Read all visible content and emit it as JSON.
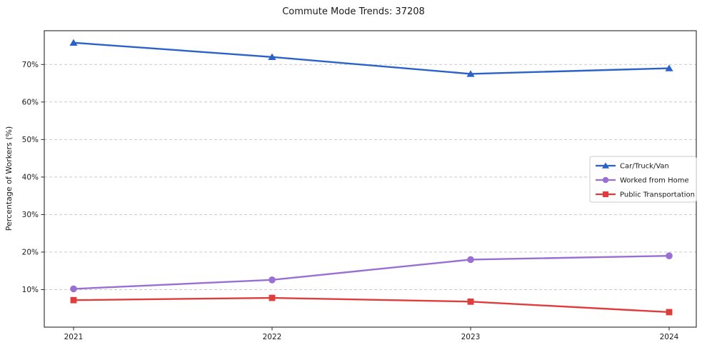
{
  "chart_data": {
    "type": "line",
    "title": "Commute Mode Trends: 37208",
    "xlabel": "",
    "ylabel": "Percentage of Workers (%)",
    "categories": [
      "2021",
      "2022",
      "2023",
      "2024"
    ],
    "series": [
      {
        "name": "Car/Truck/Van",
        "values": [
          75.8,
          72.0,
          67.5,
          69.0
        ],
        "color": "#2b62c9",
        "marker": "triangle"
      },
      {
        "name": "Worked from Home",
        "values": [
          10.2,
          12.6,
          18.0,
          19.0
        ],
        "color": "#9a6fd4",
        "marker": "circle"
      },
      {
        "name": "Public Transportation",
        "values": [
          7.2,
          7.8,
          6.8,
          4.0
        ],
        "color": "#e03c3c",
        "marker": "square"
      }
    ],
    "ylim": [
      0,
      79
    ],
    "yticks": [
      10,
      20,
      30,
      40,
      50,
      60,
      70
    ],
    "ytick_suffix": "%",
    "grid": true,
    "grid_style": "dashed",
    "legend_position": "middle-right",
    "style": {
      "background": "#ffffff",
      "axis_color": "#262626",
      "grid_color": "#c9c9c9",
      "tick_label_color": "#1a1a1a",
      "legend_border_color": "#cccccc"
    }
  }
}
